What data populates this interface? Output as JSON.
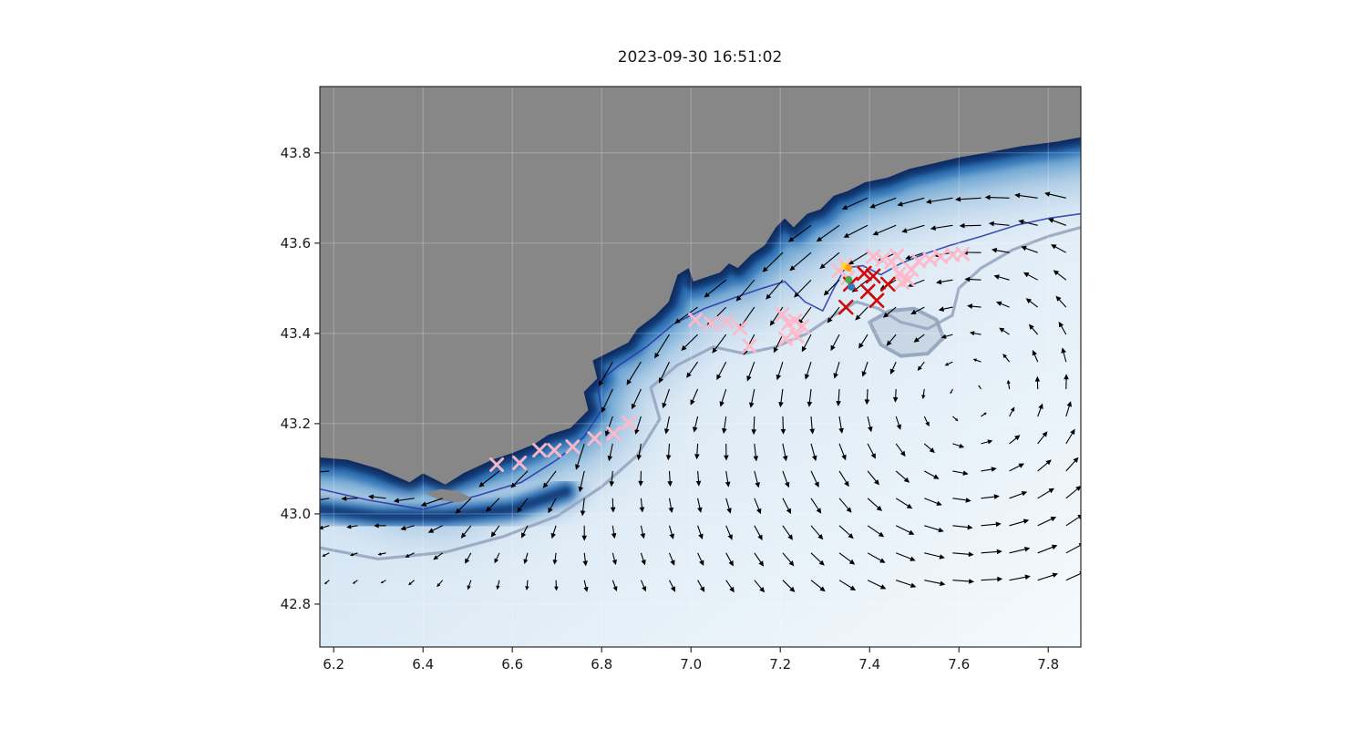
{
  "figure": {
    "background": "#ffffff"
  },
  "chart_data": {
    "type": "map-quiver",
    "title": "2023-09-30 16:51:02",
    "xlabel": "",
    "ylabel": "",
    "xlim": [
      6.169,
      7.873
    ],
    "ylim": [
      42.705,
      43.947
    ],
    "xticks": [
      6.2,
      6.4,
      6.6,
      6.8,
      7.0,
      7.2,
      7.4,
      7.6,
      7.8
    ],
    "yticks": [
      42.8,
      43.0,
      43.2,
      43.4,
      43.6,
      43.8
    ],
    "grid": true,
    "legend": "none",
    "colors": {
      "land": "#878787",
      "ocean_deep": "#0a2c60",
      "ocean_slope1": "#14427f",
      "ocean_slope2": "#2e6fb2",
      "ocean_slope3": "#6ea6d2",
      "ocean_slope4": "#aac9e4",
      "ocean_slope5": "#d4e4f2",
      "ocean_light_a": "#b5d0e9",
      "ocean_light_b": "#dceaf5",
      "ocean_light_c": "#f5fafd",
      "contour_dark": "#2234a8",
      "contour_light": "#93a2bd",
      "quiver": "#000000",
      "pink_marker": "#ffb9c9",
      "red_marker": "#d00000",
      "gridline": "#ffffff",
      "frame": "#2a2a2a"
    },
    "land_coastline": [
      [
        6.169,
        43.125
      ],
      [
        6.23,
        43.12
      ],
      [
        6.3,
        43.1
      ],
      [
        6.37,
        43.07
      ],
      [
        6.4,
        43.09
      ],
      [
        6.45,
        43.065
      ],
      [
        6.49,
        43.09
      ],
      [
        6.555,
        43.12
      ],
      [
        6.6,
        43.135
      ],
      [
        6.65,
        43.155
      ],
      [
        6.68,
        43.175
      ],
      [
        6.73,
        43.19
      ],
      [
        6.77,
        43.23
      ],
      [
        6.76,
        43.27
      ],
      [
        6.79,
        43.3
      ],
      [
        6.78,
        43.34
      ],
      [
        6.82,
        43.36
      ],
      [
        6.86,
        43.38
      ],
      [
        6.88,
        43.41
      ],
      [
        6.92,
        43.44
      ],
      [
        6.95,
        43.47
      ],
      [
        6.97,
        43.53
      ],
      [
        6.995,
        43.545
      ],
      [
        7.005,
        43.515
      ],
      [
        7.035,
        43.525
      ],
      [
        7.065,
        43.535
      ],
      [
        7.085,
        43.555
      ],
      [
        7.105,
        43.545
      ],
      [
        7.135,
        43.575
      ],
      [
        7.165,
        43.595
      ],
      [
        7.19,
        43.635
      ],
      [
        7.21,
        43.655
      ],
      [
        7.23,
        43.635
      ],
      [
        7.26,
        43.665
      ],
      [
        7.29,
        43.675
      ],
      [
        7.32,
        43.705
      ],
      [
        7.35,
        43.715
      ],
      [
        7.39,
        43.735
      ],
      [
        7.44,
        43.745
      ],
      [
        7.49,
        43.765
      ],
      [
        7.535,
        43.775
      ],
      [
        7.6,
        43.79
      ],
      [
        7.66,
        43.8
      ],
      [
        7.74,
        43.815
      ],
      [
        7.82,
        43.825
      ],
      [
        7.873,
        43.835
      ]
    ],
    "island": [
      [
        6.405,
        43.045
      ],
      [
        6.44,
        43.03
      ],
      [
        6.48,
        43.025
      ],
      [
        6.51,
        43.035
      ],
      [
        6.48,
        43.05
      ],
      [
        6.44,
        43.055
      ]
    ],
    "shelf_ridge": [
      [
        6.169,
        43.01
      ],
      [
        6.3,
        42.995
      ],
      [
        6.45,
        42.995
      ],
      [
        6.6,
        43.01
      ],
      [
        6.72,
        43.05
      ]
    ],
    "contour_dark_path": [
      [
        6.169,
        43.055
      ],
      [
        6.28,
        43.03
      ],
      [
        6.4,
        43.01
      ],
      [
        6.52,
        43.04
      ],
      [
        6.62,
        43.07
      ],
      [
        6.7,
        43.12
      ],
      [
        6.76,
        43.17
      ],
      [
        6.8,
        43.23
      ],
      [
        6.79,
        43.29
      ],
      [
        6.84,
        43.33
      ],
      [
        6.9,
        43.37
      ],
      [
        6.96,
        43.42
      ],
      [
        7.03,
        43.455
      ],
      [
        7.1,
        43.48
      ],
      [
        7.16,
        43.5
      ],
      [
        7.21,
        43.515
      ],
      [
        7.255,
        43.47
      ],
      [
        7.295,
        43.45
      ],
      [
        7.32,
        43.5
      ],
      [
        7.345,
        43.545
      ],
      [
        7.385,
        43.55
      ],
      [
        7.425,
        43.53
      ],
      [
        7.47,
        43.555
      ],
      [
        7.52,
        43.575
      ],
      [
        7.58,
        43.595
      ],
      [
        7.65,
        43.615
      ],
      [
        7.73,
        43.64
      ],
      [
        7.8,
        43.655
      ],
      [
        7.873,
        43.665
      ]
    ],
    "contour_light_path": [
      [
        6.169,
        42.925
      ],
      [
        6.3,
        42.9
      ],
      [
        6.45,
        42.915
      ],
      [
        6.58,
        42.95
      ],
      [
        6.7,
        42.995
      ],
      [
        6.8,
        43.06
      ],
      [
        6.88,
        43.13
      ],
      [
        6.93,
        43.21
      ],
      [
        6.91,
        43.28
      ],
      [
        6.97,
        43.33
      ],
      [
        7.05,
        43.37
      ],
      [
        7.12,
        43.355
      ],
      [
        7.19,
        43.37
      ],
      [
        7.26,
        43.4
      ],
      [
        7.32,
        43.44
      ],
      [
        7.37,
        43.47
      ],
      [
        7.42,
        43.455
      ],
      [
        7.47,
        43.425
      ],
      [
        7.53,
        43.41
      ],
      [
        7.585,
        43.44
      ],
      [
        7.6,
        43.5
      ],
      [
        7.65,
        43.545
      ],
      [
        7.72,
        43.585
      ],
      [
        7.8,
        43.615
      ],
      [
        7.873,
        43.635
      ]
    ],
    "offshore_loop": [
      [
        7.4,
        43.425
      ],
      [
        7.445,
        43.45
      ],
      [
        7.5,
        43.455
      ],
      [
        7.55,
        43.43
      ],
      [
        7.565,
        43.39
      ],
      [
        7.53,
        43.355
      ],
      [
        7.47,
        43.35
      ],
      [
        7.425,
        43.375
      ]
    ],
    "markers": {
      "pink_x": [
        [
          6.565,
          43.109
        ],
        [
          6.616,
          43.113
        ],
        [
          6.661,
          43.141
        ],
        [
          6.694,
          43.141
        ],
        [
          6.735,
          43.149
        ],
        [
          6.784,
          43.167
        ],
        [
          6.827,
          43.178
        ],
        [
          6.861,
          43.202
        ],
        [
          7.01,
          43.43
        ],
        [
          7.045,
          43.422
        ],
        [
          7.08,
          43.426
        ],
        [
          7.11,
          43.412
        ],
        [
          7.131,
          43.372
        ],
        [
          7.204,
          43.442
        ],
        [
          7.218,
          43.422
        ],
        [
          7.233,
          43.428
        ],
        [
          7.249,
          43.416
        ],
        [
          7.212,
          43.388
        ],
        [
          7.237,
          43.394
        ],
        [
          7.331,
          43.539
        ],
        [
          7.345,
          43.551
        ],
        [
          7.351,
          43.523
        ],
        [
          7.386,
          43.533
        ],
        [
          7.408,
          43.57
        ],
        [
          7.429,
          43.564
        ],
        [
          7.449,
          43.558
        ],
        [
          7.461,
          43.572
        ],
        [
          7.473,
          43.513
        ],
        [
          7.486,
          43.519
        ],
        [
          7.494,
          43.541
        ],
        [
          7.51,
          43.56
        ],
        [
          7.535,
          43.564
        ],
        [
          7.559,
          43.57
        ],
        [
          7.586,
          43.574
        ],
        [
          7.608,
          43.576
        ],
        [
          7.466,
          43.532
        ]
      ],
      "red_x": [
        [
          7.347,
          43.458
        ],
        [
          7.357,
          43.509
        ],
        [
          7.388,
          43.533
        ],
        [
          7.408,
          43.527
        ],
        [
          7.396,
          43.493
        ],
        [
          7.416,
          43.473
        ],
        [
          7.441,
          43.509
        ]
      ],
      "dots": [
        {
          "color": "#ffd92f",
          "lon": 7.343,
          "lat": 43.549
        },
        {
          "color": "#ff9f1a",
          "lon": 7.353,
          "lat": 43.545
        },
        {
          "color": "#45b04a",
          "lon": 7.353,
          "lat": 43.519
        },
        {
          "color": "#2e7bbf",
          "lon": 7.359,
          "lat": 43.503
        }
      ]
    },
    "quiver": {
      "grid": {
        "lon_min": 6.19,
        "lon_max": 7.84,
        "lat_min": 42.853,
        "lat_max": 43.7,
        "nx": 27,
        "ny": 15
      },
      "model": {
        "type": "coastal-jet-plus-cyclonic-gyre",
        "jet_speed": 0.85,
        "jet_efold": 0.15,
        "gyre_center": [
          7.62,
          43.22
        ],
        "gyre_peak_radius": 0.38,
        "gyre_speed": 0.5,
        "east_drift": 0.14,
        "coast_margin": 0.025
      }
    }
  }
}
